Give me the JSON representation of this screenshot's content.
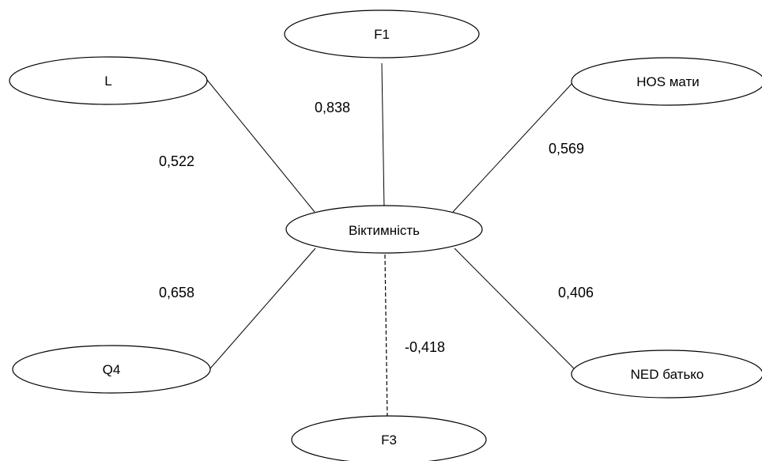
{
  "diagram": {
    "center": {
      "label": "Віктимність"
    },
    "nodes": [
      {
        "id": "f1",
        "label": "F1"
      },
      {
        "id": "l",
        "label": "L"
      },
      {
        "id": "hos",
        "label": "HOS мати"
      },
      {
        "id": "q4",
        "label": "Q4"
      },
      {
        "id": "ned",
        "label": "NED батько"
      },
      {
        "id": "f3",
        "label": "F3"
      }
    ],
    "edges": [
      {
        "to": "f1",
        "weight": "0,838",
        "style": "solid"
      },
      {
        "to": "l",
        "weight": "0,522",
        "style": "solid"
      },
      {
        "to": "hos",
        "weight": "0,569",
        "style": "solid"
      },
      {
        "to": "q4",
        "weight": "0,658",
        "style": "solid"
      },
      {
        "to": "ned",
        "weight": "0,406",
        "style": "solid"
      },
      {
        "to": "f3",
        "weight": "-0,418",
        "style": "dashed"
      }
    ]
  }
}
